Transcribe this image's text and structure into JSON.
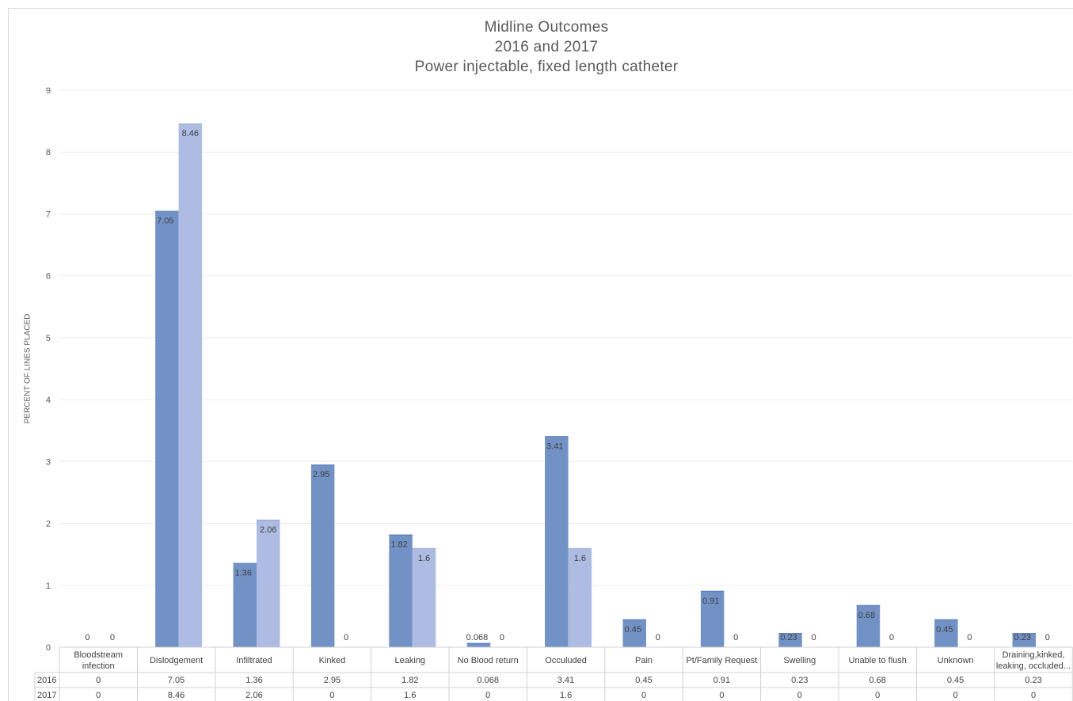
{
  "chart_data": {
    "type": "bar",
    "title": [
      "Midline Outcomes",
      "2016 and 2017",
      "Power injectable, fixed length catheter"
    ],
    "xlabel": "",
    "ylabel": "PERCENT OF LINES PLACED",
    "ylim": [
      0,
      9
    ],
    "yticks": [
      0,
      1,
      2,
      3,
      4,
      5,
      6,
      7,
      8,
      9
    ],
    "grid": true,
    "legend": "data-table-below",
    "categories": [
      [
        "Bloodstream",
        "infection"
      ],
      [
        "Dislodgement"
      ],
      [
        "Infiltrated"
      ],
      [
        "Kinked"
      ],
      [
        "Leaking"
      ],
      [
        "No Blood return"
      ],
      [
        "Occuluded"
      ],
      [
        "Pain"
      ],
      [
        "Pt/Family Request"
      ],
      [
        "Swelling"
      ],
      [
        "Unable to flush"
      ],
      [
        "Unknown"
      ],
      [
        "Draining,kinked,",
        "leaking, occluded..."
      ]
    ],
    "series": [
      {
        "name": "2016",
        "color": "#7292c6",
        "values": [
          0,
          7.05,
          1.36,
          2.95,
          1.82,
          0.068,
          3.41,
          0.45,
          0.91,
          0.23,
          0.68,
          0.45,
          0.23
        ]
      },
      {
        "name": "2017",
        "color": "#aebce3",
        "values": [
          0,
          8.46,
          2.06,
          0,
          1.6,
          0,
          1.6,
          0,
          0,
          0,
          0,
          0,
          0
        ]
      }
    ]
  }
}
